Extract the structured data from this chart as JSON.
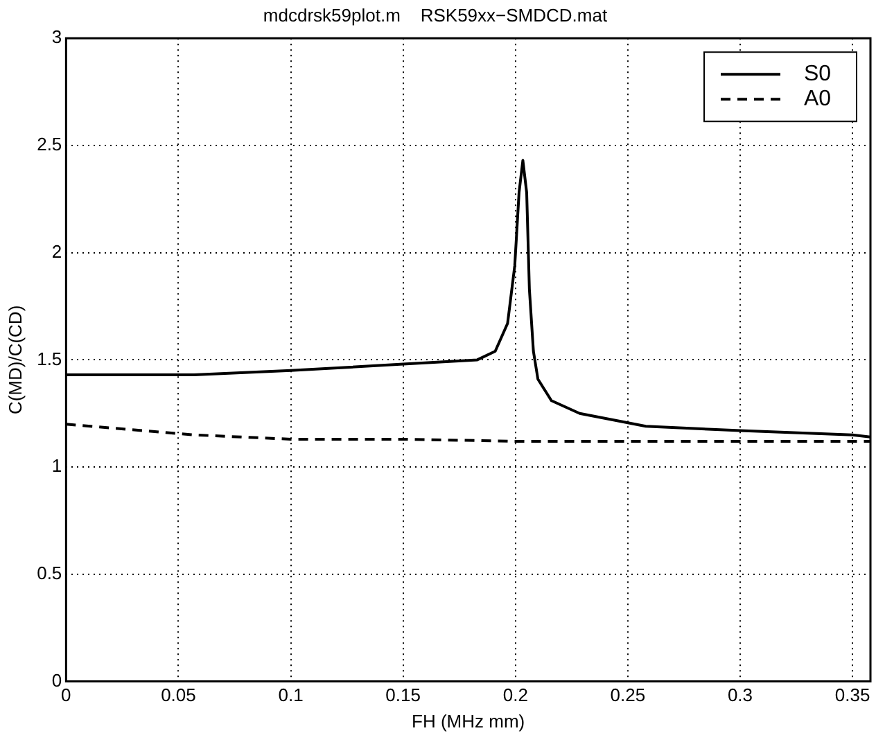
{
  "chart_data": {
    "type": "line",
    "title": "mdcdrsk59plot.m    RSK59xx−SMDCD.mat",
    "xlabel": "FH (MHz mm)",
    "ylabel": "C(MD)/C(CD)",
    "xlim": [
      0,
      0.358
    ],
    "ylim": [
      0,
      3
    ],
    "xticks": [
      0,
      0.05,
      0.1,
      0.15,
      0.2,
      0.25,
      0.3,
      0.35
    ],
    "yticks": [
      0,
      0.5,
      1,
      1.5,
      2,
      2.5,
      3
    ],
    "grid": true,
    "legend": "top right",
    "marker": "none",
    "series": [
      {
        "name": "S0",
        "color": "#000000",
        "line_style": "solid",
        "x": [
          0,
          0.057,
          0.1,
          0.15,
          0.183,
          0.191,
          0.1965,
          0.1997,
          0.2016,
          0.2033,
          0.205,
          0.2062,
          0.208,
          0.21,
          0.216,
          0.2286,
          0.258,
          0.3,
          0.35,
          0.358
        ],
        "values": [
          1.43,
          1.43,
          1.45,
          1.48,
          1.5,
          1.54,
          1.67,
          1.94,
          2.28,
          2.43,
          2.28,
          1.83,
          1.54,
          1.41,
          1.31,
          1.25,
          1.19,
          1.17,
          1.15,
          1.14
        ]
      },
      {
        "name": "A0",
        "color": "#000000",
        "line_style": "dashed",
        "x": [
          0,
          0.057,
          0.1,
          0.15,
          0.2,
          0.25,
          0.3,
          0.358
        ],
        "values": [
          1.2,
          1.15,
          1.13,
          1.13,
          1.12,
          1.12,
          1.12,
          1.12
        ]
      }
    ]
  }
}
